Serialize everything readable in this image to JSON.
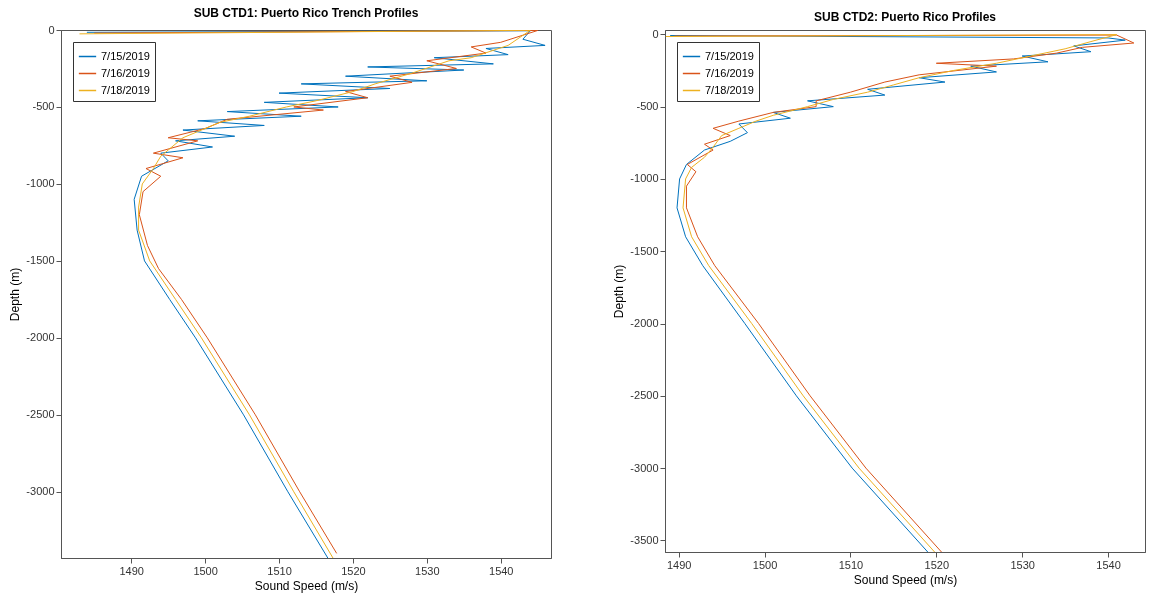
{
  "chart_data": [
    {
      "type": "line",
      "title": "SUB CTD1: Puerto Rico Trench Profiles",
      "xlabel": "Sound Speed (m/s)",
      "ylabel": "Depth (m)",
      "xlim": [
        1480.5,
        1546.8
      ],
      "xticks": [
        1490,
        1500,
        1510,
        1520,
        1530,
        1540
      ],
      "ylim": [
        -3430,
        0
      ],
      "yticks": [
        0,
        -500,
        -1000,
        -1500,
        -2000,
        -2500,
        -3000
      ],
      "grid": false,
      "legend": "top left",
      "marker": "none",
      "line_style": "solid",
      "series": [
        {
          "name": "7/15/2019",
          "color": "#0072bd",
          "x": [
            1484,
            1544,
            1543,
            1546,
            1538,
            1541,
            1531,
            1539,
            1522,
            1535,
            1519,
            1530,
            1513,
            1525,
            1510,
            1522,
            1508,
            1518,
            1503,
            1513,
            1499,
            1508,
            1497,
            1504,
            1496,
            1501,
            1494,
            1495,
            1491.4,
            1490.4,
            1490.8,
            1491.8,
            1495.2,
            1498.7,
            1505.2,
            1511.2,
            1516.6
          ],
          "values": [
            -15,
            -5,
            -60,
            -100,
            -120,
            -160,
            -180,
            -220,
            -240,
            -260,
            -300,
            -330,
            -350,
            -380,
            -410,
            -440,
            -470,
            -500,
            -530,
            -560,
            -590,
            -620,
            -650,
            -690,
            -720,
            -760,
            -800,
            -850,
            -950,
            -1100,
            -1300,
            -1500,
            -1750,
            -2000,
            -2500,
            -3000,
            -3430
          ]
        },
        {
          "name": "7/16/2019",
          "color": "#d95319",
          "x": [
            1485,
            1545,
            1540,
            1536,
            1538,
            1530,
            1534,
            1525,
            1528,
            1519,
            1522,
            1512,
            1516,
            1503,
            1500,
            1495,
            1499,
            1493,
            1497,
            1492,
            1494,
            1491.6,
            1491.1,
            1492.2,
            1493.7,
            1496.8,
            1500.3,
            1506.8,
            1512.8,
            1517.8
          ],
          "values": [
            -20,
            -3,
            -80,
            -110,
            -150,
            -200,
            -250,
            -300,
            -340,
            -400,
            -440,
            -500,
            -520,
            -580,
            -640,
            -700,
            -720,
            -800,
            -830,
            -900,
            -950,
            -1050,
            -1200,
            -1400,
            -1550,
            -1750,
            -2000,
            -2500,
            -3000,
            -3400
          ]
        },
        {
          "name": "7/18/2019",
          "color": "#edb120",
          "x": [
            1483,
            1544,
            1541,
            1536,
            1533,
            1528,
            1523,
            1520,
            1515,
            1511,
            1506,
            1502,
            1499,
            1497,
            1495,
            1494,
            1493,
            1491.5,
            1491,
            1491,
            1492.5,
            1496,
            1499.5,
            1506,
            1512,
            1517.3
          ],
          "values": [
            -25,
            -2,
            -100,
            -180,
            -200,
            -280,
            -350,
            -400,
            -460,
            -500,
            -560,
            -600,
            -660,
            -700,
            -780,
            -820,
            -900,
            -1000,
            -1150,
            -1300,
            -1500,
            -1750,
            -2000,
            -2500,
            -3000,
            -3430
          ]
        }
      ]
    },
    {
      "type": "line",
      "title": "SUB CTD2: Puerto Rico Profiles",
      "xlabel": "Sound Speed (m/s)",
      "ylabel": "Depth (m)",
      "xlim": [
        1488.4,
        1544.3
      ],
      "xticks": [
        1490,
        1500,
        1510,
        1520,
        1530,
        1540
      ],
      "ylim": [
        -3580,
        30
      ],
      "yticks": [
        0,
        -500,
        -1000,
        -1500,
        -2000,
        -2500,
        -3000,
        -3500
      ],
      "grid": false,
      "legend": "top left",
      "marker": "none",
      "line_style": "solid",
      "series": [
        {
          "name": "7/15/2019",
          "color": "#0072bd",
          "x": [
            1489,
            1540,
            1542,
            1536,
            1538,
            1530,
            1533,
            1524,
            1527,
            1518,
            1521,
            1512,
            1514,
            1505,
            1508,
            1501,
            1503,
            1497,
            1498,
            1496,
            1493,
            1490.9,
            1490.1,
            1489.8,
            1490.8,
            1492.8,
            1497.7,
            1503.7,
            1510.2,
            1519.0
          ],
          "values": [
            -8,
            -25,
            -40,
            -80,
            -120,
            -150,
            -190,
            -220,
            -260,
            -300,
            -330,
            -380,
            -420,
            -460,
            -500,
            -540,
            -580,
            -620,
            -680,
            -740,
            -800,
            -900,
            -1000,
            -1200,
            -1400,
            -1600,
            -2000,
            -2500,
            -3000,
            -3580
          ]
        },
        {
          "name": "7/16/2019",
          "color": "#d95319",
          "x": [
            1489.5,
            1541,
            1543,
            1537,
            1534,
            1529,
            1520,
            1527,
            1518,
            1514,
            1510,
            1506,
            1506,
            1501,
            1497,
            1494,
            1496,
            1493,
            1494,
            1491,
            1492,
            1490.9,
            1490.9,
            1492.2,
            1494.2,
            1499.3,
            1505.3,
            1511.8,
            1520.6
          ],
          "values": [
            -12,
            -5,
            -60,
            -90,
            -130,
            -170,
            -200,
            -220,
            -280,
            -330,
            -400,
            -460,
            -500,
            -540,
            -600,
            -650,
            -700,
            -760,
            -800,
            -900,
            -950,
            -1050,
            -1200,
            -1400,
            -1600,
            -2000,
            -2500,
            -3000,
            -3580
          ]
        },
        {
          "name": "7/18/2019",
          "color": "#edb120",
          "x": [
            1488.5,
            1541,
            1538,
            1535,
            1531,
            1527,
            1522,
            1518,
            1515,
            1512,
            1508,
            1505,
            1501,
            1499,
            1497,
            1495,
            1494,
            1493,
            1491.5,
            1490.8,
            1490.5,
            1491.5,
            1493.5,
            1498.5,
            1504.5,
            1511,
            1519.8
          ],
          "values": [
            -15,
            -2,
            -50,
            -100,
            -150,
            -200,
            -250,
            -300,
            -350,
            -400,
            -450,
            -500,
            -560,
            -600,
            -650,
            -700,
            -780,
            -850,
            -920,
            -1000,
            -1200,
            -1400,
            -1600,
            -2000,
            -2500,
            -3000,
            -3580
          ]
        }
      ]
    }
  ]
}
